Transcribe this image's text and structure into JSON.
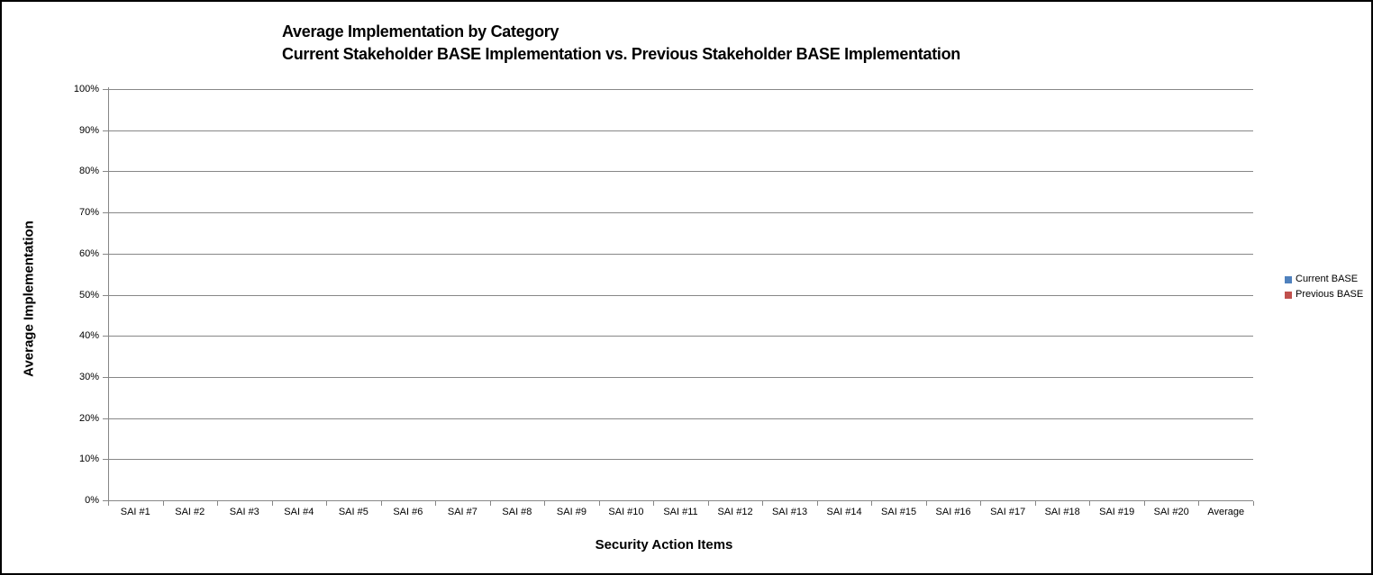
{
  "chart_data": {
    "type": "bar",
    "title": "Average Implementation by Category",
    "subtitle": "Current Stakeholder BASE Implementation vs. Previous Stakeholder BASE Implementation",
    "xlabel": "Security Action Items",
    "ylabel": "Average Implementation",
    "categories": [
      "SAI #1",
      "SAI #2",
      "SAI #3",
      "SAI #4",
      "SAI #5",
      "SAI #6",
      "SAI #7",
      "SAI #8",
      "SAI #9",
      "SAI #10",
      "SAI #11",
      "SAI #12",
      "SAI #13",
      "SAI #14",
      "SAI #15",
      "SAI #16",
      "SAI #17",
      "SAI #18",
      "SAI #19",
      "SAI #20",
      "Average"
    ],
    "series": [
      {
        "name": "Current BASE",
        "color": "#4F81BD",
        "values": [
          0,
          0,
          0,
          0,
          0,
          0,
          0,
          0,
          0,
          0,
          0,
          0,
          0,
          0,
          0,
          0,
          0,
          0,
          0,
          0,
          0
        ]
      },
      {
        "name": "Previous BASE",
        "color": "#C0504D",
        "values": [
          0,
          0,
          0,
          0,
          0,
          0,
          0,
          0,
          0,
          0,
          0,
          0,
          0,
          0,
          0,
          0,
          0,
          0,
          0,
          0,
          0
        ]
      }
    ],
    "y_ticks": [
      "0%",
      "10%",
      "20%",
      "30%",
      "40%",
      "50%",
      "60%",
      "70%",
      "80%",
      "90%",
      "100%"
    ],
    "ylim": [
      0,
      100
    ],
    "grid": "horizontal",
    "legend_position": "right",
    "colors": {
      "gridline": "#878787",
      "axis": "#878787",
      "text": "#000000"
    }
  }
}
